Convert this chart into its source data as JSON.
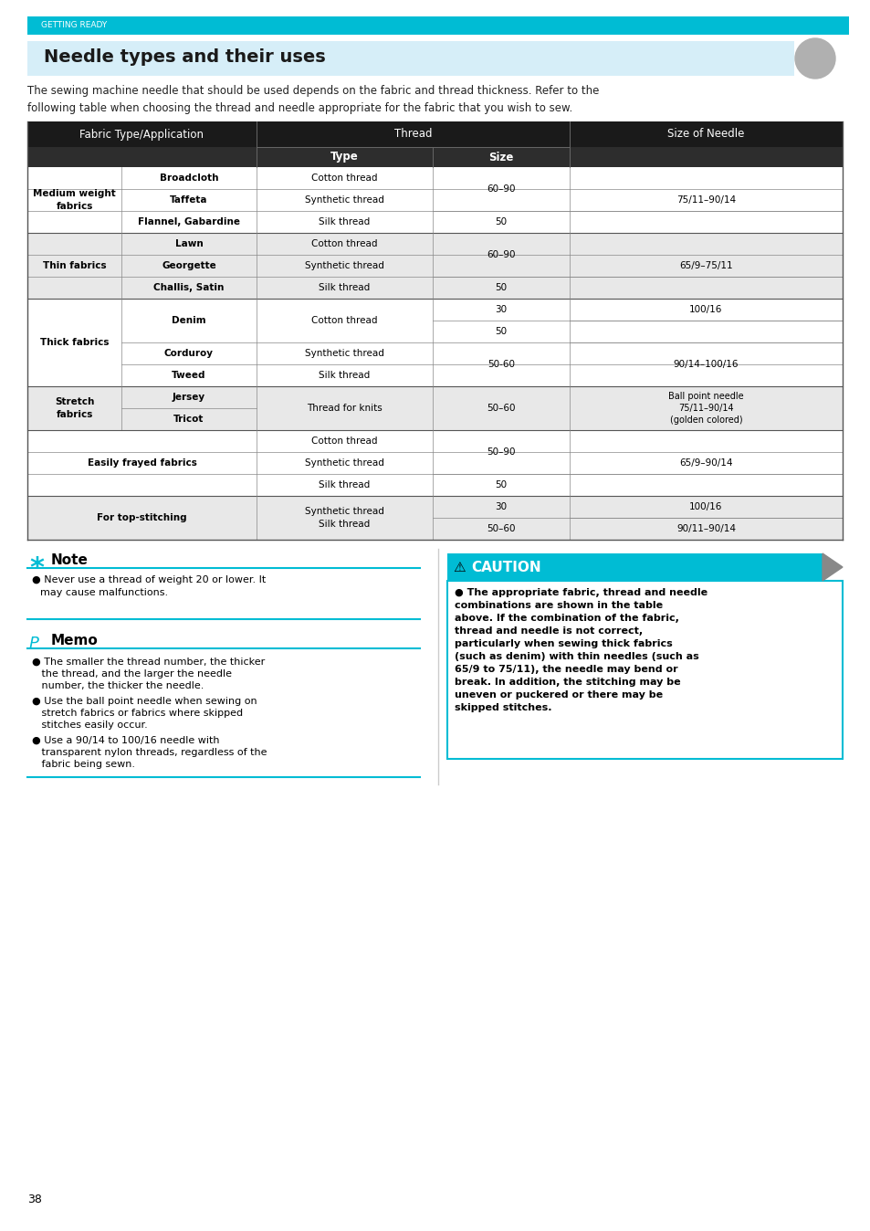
{
  "page_bg": "#ffffff",
  "top_bar_color": "#00bcd4",
  "top_bar_text": "GETTING READY",
  "title": "Needle types and their uses",
  "title_bg": "#d6eef8",
  "intro_text": "The sewing machine needle that should be used depends on the fabric and thread thickness. Refer to the\nfollowing table when choosing the thread and needle appropriate for the fabric that you wish to sew.",
  "table_header_bg": "#1a1a1a",
  "table_header_text_color": "#ffffff",
  "table_subheader_bg": "#2d2d2d",
  "table_row_bg_light": "#e8e8e8",
  "table_row_bg_white": "#ffffff",
  "table_border_color": "#888888",
  "note_title": "Note",
  "note_text_line1": "Never use a thread of weight 20 or lower. It",
  "note_text_line2": "may cause malfunctions.",
  "memo_title": "Memo",
  "memo_item1_lines": [
    "The smaller the thread number, the thicker",
    "the thread, and the larger the needle",
    "number, the thicker the needle."
  ],
  "memo_item2_lines": [
    "Use the ball point needle when sewing on",
    "stretch fabrics or fabrics where skipped",
    "stitches easily occur."
  ],
  "memo_item3_lines": [
    "Use a 90/14 to 100/16 needle with",
    "transparent nylon threads, regardless of the",
    "fabric being sewn."
  ],
  "caution_title": "CAUTION",
  "caution_bg": "#00bcd4",
  "caution_border": "#00bcd4",
  "caution_lines": [
    "● The appropriate fabric, thread and needle",
    "combinations are shown in the table",
    "above. If the combination of the fabric,",
    "thread and needle is not correct,",
    "particularly when sewing thick fabrics",
    "(such as denim) with thin needles (such as",
    "65/9 to 75/11), the needle may bend or",
    "break. In addition, the stitching may be",
    "uneven or puckered or there may be",
    "skipped stitches."
  ],
  "page_number": "38",
  "accent_color": "#00bcd4"
}
